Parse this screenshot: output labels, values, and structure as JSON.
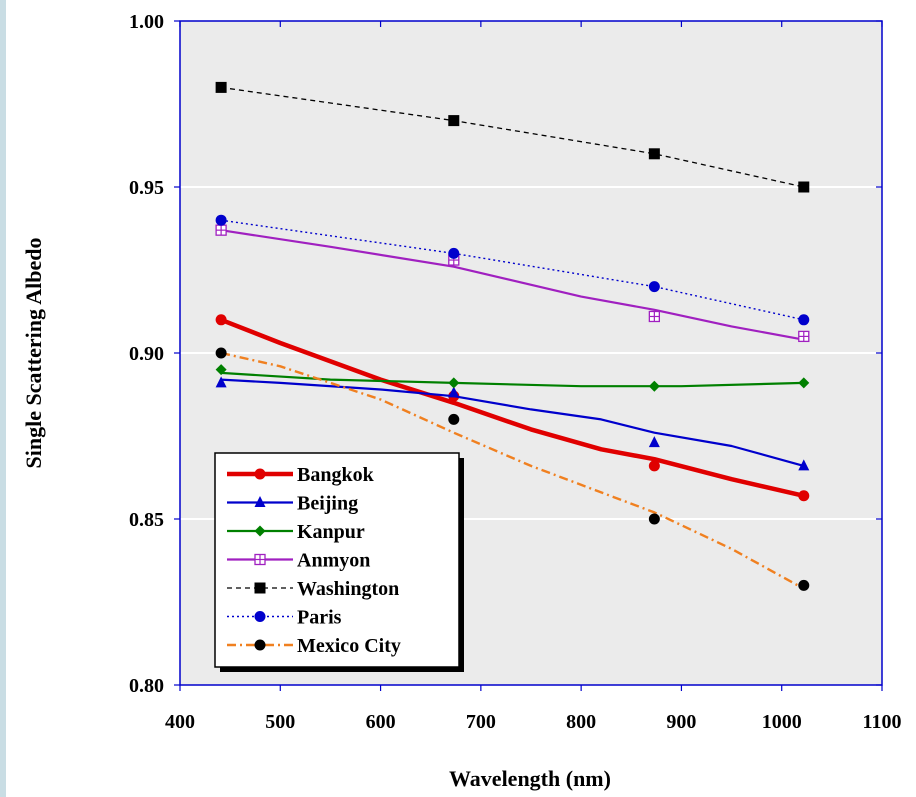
{
  "chart_data": {
    "type": "line",
    "title": "",
    "xlabel": "Wavelength (nm)",
    "ylabel": "Single Scattering Albedo",
    "xlim": [
      400,
      1100
    ],
    "ylim": [
      0.8,
      1.0
    ],
    "x_ticks": [
      "400",
      "500",
      "600",
      "700",
      "800",
      "900",
      "1000",
      "1100"
    ],
    "y_ticks": [
      "0.80",
      "0.85",
      "0.90",
      "0.95",
      "1.00"
    ],
    "grid": "horizontal",
    "legend_position": "lower-left",
    "plot_background": "#ebebeb",
    "axis_color": "#0000cc",
    "series": [
      {
        "name": "Bangkok",
        "color": "#e00000",
        "line": "solid-thick",
        "marker": "circle",
        "points": [
          [
            441,
            0.91
          ],
          [
            673,
            0.887
          ],
          [
            873,
            0.866
          ],
          [
            1022,
            0.857
          ]
        ],
        "curve": [
          [
            441,
            0.91
          ],
          [
            500,
            0.903
          ],
          [
            600,
            0.892
          ],
          [
            673,
            0.885
          ],
          [
            750,
            0.877
          ],
          [
            820,
            0.871
          ],
          [
            873,
            0.868
          ],
          [
            950,
            0.862
          ],
          [
            1022,
            0.857
          ]
        ]
      },
      {
        "name": "Beijing",
        "color": "#0000cc",
        "line": "solid",
        "marker": "triangle",
        "points": [
          [
            441,
            0.891
          ],
          [
            673,
            0.888
          ],
          [
            873,
            0.873
          ],
          [
            1022,
            0.866
          ]
        ],
        "curve": [
          [
            441,
            0.892
          ],
          [
            500,
            0.891
          ],
          [
            600,
            0.889
          ],
          [
            673,
            0.887
          ],
          [
            750,
            0.883
          ],
          [
            820,
            0.88
          ],
          [
            873,
            0.876
          ],
          [
            950,
            0.872
          ],
          [
            1022,
            0.866
          ]
        ]
      },
      {
        "name": "Kanpur",
        "color": "#008000",
        "line": "solid",
        "marker": "diamond",
        "points": [
          [
            441,
            0.895
          ],
          [
            673,
            0.891
          ],
          [
            873,
            0.89
          ],
          [
            1022,
            0.891
          ]
        ],
        "curve": [
          [
            441,
            0.894
          ],
          [
            550,
            0.892
          ],
          [
            673,
            0.891
          ],
          [
            800,
            0.89
          ],
          [
            900,
            0.89
          ],
          [
            1022,
            0.891
          ]
        ]
      },
      {
        "name": "Anmyon",
        "color": "#a020c0",
        "line": "solid",
        "marker": "square-plus",
        "points": [
          [
            441,
            0.937
          ],
          [
            673,
            0.928
          ],
          [
            873,
            0.911
          ],
          [
            1022,
            0.905
          ]
        ],
        "curve": [
          [
            441,
            0.937
          ],
          [
            550,
            0.932
          ],
          [
            673,
            0.926
          ],
          [
            800,
            0.917
          ],
          [
            873,
            0.913
          ],
          [
            950,
            0.908
          ],
          [
            1022,
            0.904
          ]
        ]
      },
      {
        "name": "Washington",
        "color": "#000000",
        "line": "dashed",
        "marker": "square",
        "points": [
          [
            441,
            0.98
          ],
          [
            673,
            0.97
          ],
          [
            873,
            0.96
          ],
          [
            1022,
            0.95
          ]
        ],
        "curve": [
          [
            441,
            0.98
          ],
          [
            673,
            0.97
          ],
          [
            873,
            0.96
          ],
          [
            1022,
            0.95
          ]
        ]
      },
      {
        "name": "Paris",
        "color": "#0000cc",
        "line": "dotted",
        "marker": "circle",
        "points": [
          [
            441,
            0.94
          ],
          [
            673,
            0.93
          ],
          [
            873,
            0.92
          ],
          [
            1022,
            0.91
          ]
        ],
        "curve": [
          [
            441,
            0.94
          ],
          [
            673,
            0.93
          ],
          [
            873,
            0.92
          ],
          [
            1022,
            0.91
          ]
        ]
      },
      {
        "name": "Mexico City",
        "color": "#f08020",
        "line": "dash-dot",
        "marker": "circle",
        "marker_color": "#000000",
        "points": [
          [
            441,
            0.9
          ],
          [
            673,
            0.88
          ],
          [
            873,
            0.85
          ],
          [
            1022,
            0.83
          ]
        ],
        "curve": [
          [
            441,
            0.9
          ],
          [
            500,
            0.896
          ],
          [
            600,
            0.886
          ],
          [
            673,
            0.876
          ],
          [
            750,
            0.866
          ],
          [
            820,
            0.858
          ],
          [
            873,
            0.852
          ],
          [
            950,
            0.841
          ],
          [
            1022,
            0.829
          ]
        ]
      }
    ],
    "legend_text_colors": [
      "#e00000",
      "#0000cc",
      "#008000",
      "#a020c0",
      "#000000",
      "#0000cc",
      "#000000"
    ]
  }
}
